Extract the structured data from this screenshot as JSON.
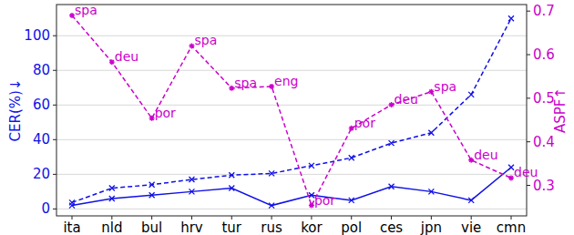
{
  "chart_data": {
    "type": "line",
    "categories": [
      "ita",
      "nld",
      "bul",
      "hrv",
      "tur",
      "rus",
      "kor",
      "pol",
      "ces",
      "jpn",
      "vie",
      "cmn"
    ],
    "y_label": "CER(%)↓",
    "y2_label": "ASPF↑",
    "ylim": [
      -4,
      118
    ],
    "yticks": [
      0,
      20,
      40,
      60,
      80,
      100
    ],
    "y2lim": [
      0.23,
      0.715
    ],
    "y2ticks": [
      0.3,
      0.4,
      0.5,
      0.6,
      0.7
    ],
    "grid": true,
    "series": [
      {
        "color": "#1010e8",
        "line_style": "dashed",
        "marker": "x",
        "values": [
          3.7,
          12,
          14,
          17,
          19.5,
          20.5,
          25,
          29.5,
          38,
          44,
          66,
          110
        ]
      },
      {
        "color": "#1010e8",
        "line_style": "solid",
        "marker": "x",
        "values": [
          2,
          6,
          8,
          10,
          12,
          2,
          8,
          5,
          13,
          10,
          5,
          24
        ]
      },
      {
        "color": "#cc00cc",
        "line_style": "dashed",
        "marker": "star",
        "axis": "y2",
        "values": [
          0.69,
          0.583,
          0.454,
          0.62,
          0.523,
          0.527,
          0.254,
          0.431,
          0.485,
          0.515,
          0.358,
          0.317
        ],
        "labels": [
          "spa",
          "deu",
          "por",
          "spa",
          "spa",
          "eng",
          "por",
          "por",
          "deu",
          "spa",
          "deu",
          "deu"
        ]
      }
    ]
  }
}
